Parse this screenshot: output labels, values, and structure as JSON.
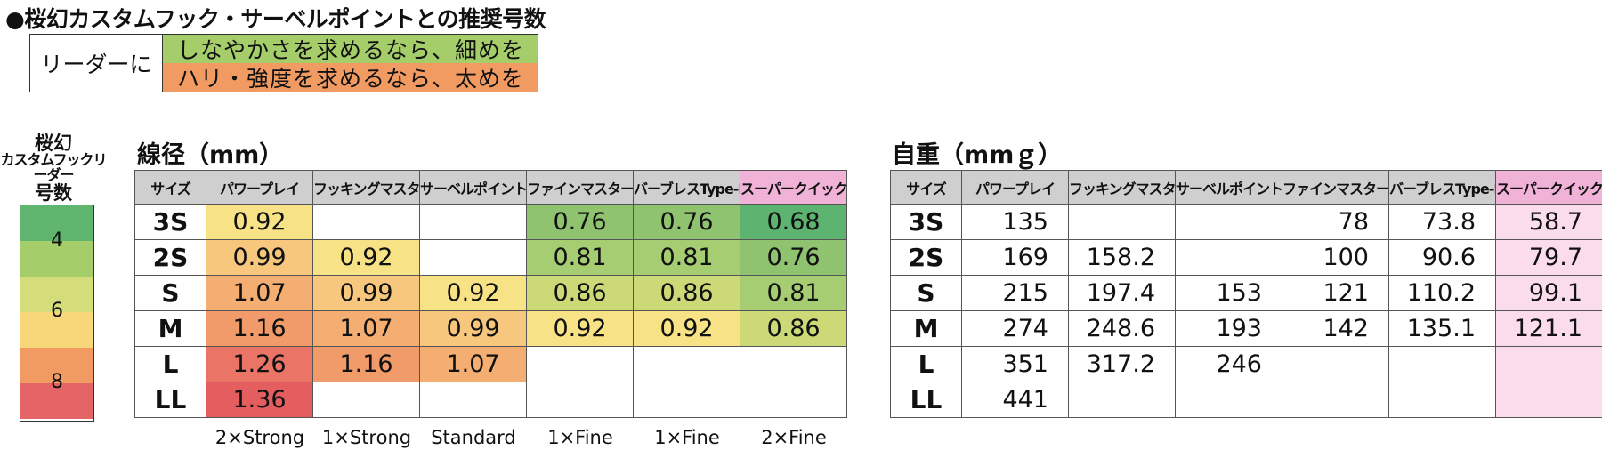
{
  "title": "●桜幻カスタムフック・サーベルポイントとの推奨号数",
  "legend": {
    "label": "リーダーに",
    "rows": [
      {
        "text": "しなやかさを求めるなら、細めを",
        "color": "#a5cd6a"
      },
      {
        "text": "ハリ・強度を求めるなら、太めを",
        "color": "#f19b63"
      }
    ]
  },
  "scale": {
    "title_line1": "桜幻",
    "title_line2": "カスタムフックリーダー",
    "title_line3": "号数",
    "segments": [
      "#5fb46e",
      "#a5cd6a",
      "#d5dd7a",
      "#f7d77a",
      "#f19b63",
      "#e56465"
    ],
    "numbers": [
      "4",
      "6",
      "8"
    ]
  },
  "diameter": {
    "title": "線径（mm）",
    "headers": [
      "サイズ",
      "パワープレイ",
      "フッキングマスター",
      "サーベルポイント",
      "ファインマスター",
      "バーブレスType-F",
      "スーパークイック"
    ],
    "rows": [
      {
        "size": "3S",
        "cells": [
          {
            "v": "0.92",
            "c": "#f7e385"
          },
          {
            "v": "",
            "c": "#ffffff"
          },
          {
            "v": "",
            "c": "#ffffff"
          },
          {
            "v": "0.76",
            "c": "#8fc370"
          },
          {
            "v": "0.76",
            "c": "#8fc370"
          },
          {
            "v": "0.68",
            "c": "#5cb470"
          }
        ]
      },
      {
        "size": "2S",
        "cells": [
          {
            "v": "0.99",
            "c": "#f6c77c"
          },
          {
            "v": "0.92",
            "c": "#f7e385"
          },
          {
            "v": "",
            "c": "#ffffff"
          },
          {
            "v": "0.81",
            "c": "#a6cd72"
          },
          {
            "v": "0.81",
            "c": "#a6cd72"
          },
          {
            "v": "0.76",
            "c": "#8fc370"
          }
        ]
      },
      {
        "size": "S",
        "cells": [
          {
            "v": "1.07",
            "c": "#f4ae71"
          },
          {
            "v": "0.99",
            "c": "#f6c77c"
          },
          {
            "v": "0.92",
            "c": "#f7e385"
          },
          {
            "v": "0.86",
            "c": "#cbd976"
          },
          {
            "v": "0.86",
            "c": "#cbd976"
          },
          {
            "v": "0.81",
            "c": "#a6cd72"
          }
        ]
      },
      {
        "size": "M",
        "cells": [
          {
            "v": "1.16",
            "c": "#f19a6a"
          },
          {
            "v": "1.07",
            "c": "#f4ae71"
          },
          {
            "v": "0.99",
            "c": "#f6c77c"
          },
          {
            "v": "0.92",
            "c": "#f7e385"
          },
          {
            "v": "0.92",
            "c": "#f7e385"
          },
          {
            "v": "0.86",
            "c": "#cbd976"
          }
        ]
      },
      {
        "size": "L",
        "cells": [
          {
            "v": "1.26",
            "c": "#ea7465"
          },
          {
            "v": "1.16",
            "c": "#f19a6a"
          },
          {
            "v": "1.07",
            "c": "#f4ae71"
          },
          {
            "v": "",
            "c": "#ffffff"
          },
          {
            "v": "",
            "c": "#ffffff"
          },
          {
            "v": "",
            "c": "#ffffff"
          }
        ]
      },
      {
        "size": "LL",
        "cells": [
          {
            "v": "1.36",
            "c": "#e45e60"
          },
          {
            "v": "",
            "c": "#ffffff"
          },
          {
            "v": "",
            "c": "#ffffff"
          },
          {
            "v": "",
            "c": "#ffffff"
          },
          {
            "v": "",
            "c": "#ffffff"
          },
          {
            "v": "",
            "c": "#ffffff"
          }
        ]
      }
    ],
    "footers": [
      "2×Strong",
      "1×Strong",
      "Standard",
      "1×Fine",
      "1×Fine",
      "2×Fine"
    ]
  },
  "weight": {
    "title": "自重（mmｇ）",
    "headers": [
      "サイズ",
      "パワープレイ",
      "フッキングマスター",
      "サーベルポイント",
      "ファインマスター",
      "バーブレスType-F",
      "スーパークイック"
    ],
    "rows": [
      {
        "size": "3S",
        "cells": [
          "135",
          "",
          "",
          "78",
          "73.8",
          "58.7"
        ]
      },
      {
        "size": "2S",
        "cells": [
          "169",
          "158.2",
          "",
          "100",
          "90.6",
          "79.7"
        ]
      },
      {
        "size": "S",
        "cells": [
          "215",
          "197.4",
          "153",
          "121",
          "110.2",
          "99.1"
        ]
      },
      {
        "size": "M",
        "cells": [
          "274",
          "248.6",
          "193",
          "142",
          "135.1",
          "121.1"
        ]
      },
      {
        "size": "L",
        "cells": [
          "351",
          "317.2",
          "246",
          "",
          "",
          ""
        ]
      },
      {
        "size": "LL",
        "cells": [
          "441",
          "",
          "",
          "",
          "",
          ""
        ]
      }
    ]
  }
}
